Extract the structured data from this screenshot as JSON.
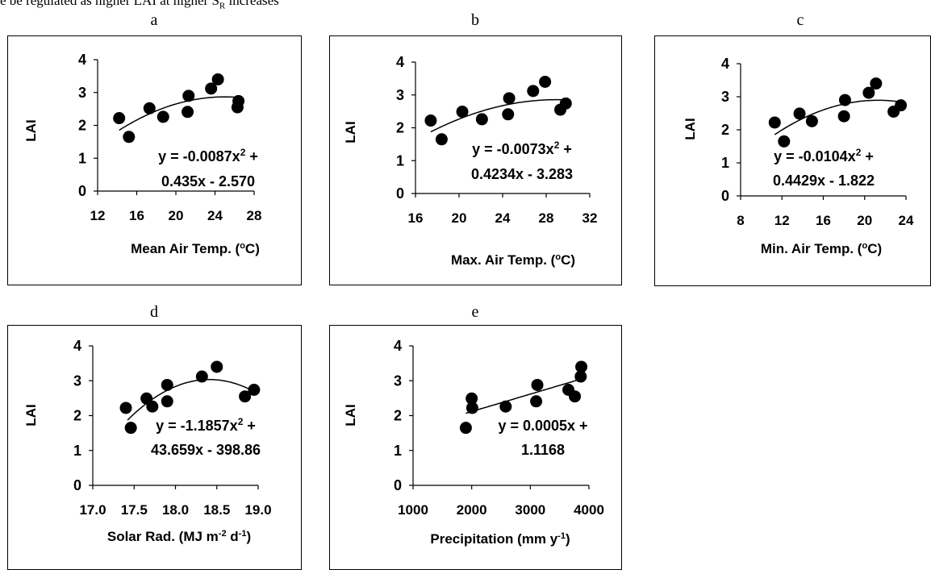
{
  "top_text": "e be regulated as higher LAI at higher S",
  "top_text_sub": "R",
  "top_text_end": " increases",
  "chart_data": [
    {
      "id": "a",
      "letter": "a",
      "type": "scatter",
      "ylabel": "LAI",
      "xlabel": "Mean Air Temp. (oC)",
      "xlabel_parts": [
        "Mean Air Temp. (",
        "o",
        "C)"
      ],
      "xticks": [
        12,
        16,
        20,
        24,
        28
      ],
      "tick_decimals": 0,
      "xlim": [
        12,
        28
      ],
      "ylim": [
        0,
        4
      ],
      "yticks": [
        0,
        1,
        2,
        3,
        4
      ],
      "x": [
        14.2,
        15.2,
        17.3,
        18.7,
        21.2,
        21.3,
        23.6,
        24.3,
        26.3,
        26.4
      ],
      "y": [
        2.22,
        1.65,
        2.52,
        2.26,
        2.41,
        2.9,
        3.12,
        3.4,
        2.55,
        2.74
      ],
      "fit": {
        "a": -0.0087,
        "b": 0.435,
        "c": -2.57,
        "x_range": [
          14.2,
          26.4
        ]
      },
      "equation_lines": [
        "y = -0.0087x2 +",
        "0.435x - 2.570"
      ]
    },
    {
      "id": "b",
      "letter": "b",
      "type": "scatter",
      "ylabel": "LAI",
      "xlabel": "Max. Air Temp. (oC)",
      "xlabel_parts": [
        "Max. Air Temp. (",
        "o",
        "C)"
      ],
      "xticks": [
        16,
        20,
        24,
        28,
        32
      ],
      "tick_decimals": 0,
      "xlim": [
        16,
        32
      ],
      "ylim": [
        0,
        4
      ],
      "yticks": [
        0,
        1,
        2,
        3,
        4
      ],
      "x": [
        17.4,
        18.4,
        20.3,
        22.1,
        24.5,
        24.6,
        26.8,
        27.9,
        29.3,
        29.8
      ],
      "y": [
        2.22,
        1.65,
        2.49,
        2.26,
        2.41,
        2.9,
        3.12,
        3.4,
        2.55,
        2.74
      ],
      "fit": {
        "a": -0.0073,
        "b": 0.4234,
        "c": -3.283,
        "x_range": [
          17.4,
          29.8
        ]
      },
      "equation_lines": [
        "y = -0.0073x2 +",
        "0.4234x - 3.283"
      ]
    },
    {
      "id": "c",
      "letter": "c",
      "type": "scatter",
      "ylabel": "LAI",
      "xlabel": "Min. Air Temp. (oC)",
      "xlabel_parts": [
        "Min. Air Temp. (",
        "o",
        "C)"
      ],
      "xticks": [
        8,
        12,
        16,
        20,
        24
      ],
      "tick_decimals": 0,
      "xlim": [
        8,
        24
      ],
      "ylim": [
        0,
        4
      ],
      "yticks": [
        0,
        1,
        2,
        3,
        4
      ],
      "x": [
        11.3,
        12.2,
        13.7,
        14.9,
        18.0,
        18.1,
        20.4,
        21.1,
        22.8,
        23.5
      ],
      "y": [
        2.22,
        1.65,
        2.49,
        2.26,
        2.41,
        2.9,
        3.12,
        3.4,
        2.55,
        2.74
      ],
      "fit": {
        "a": -0.0104,
        "b": 0.4429,
        "c": -1.822,
        "x_range": [
          11.3,
          23.5
        ]
      },
      "equation_lines": [
        "y = -0.0104x2 +",
        "0.4429x - 1.822"
      ]
    },
    {
      "id": "d",
      "letter": "d",
      "type": "scatter",
      "ylabel": "LAI",
      "xlabel": "Solar Rad. (MJ m-2 d-1)",
      "xlabel_parts": [
        "Solar Rad. (MJ m",
        "-2",
        " d",
        "-1",
        ")"
      ],
      "xticks": [
        17.0,
        17.5,
        18.0,
        18.5,
        19.0
      ],
      "tick_decimals": 1,
      "xlim": [
        17.0,
        19.0
      ],
      "ylim": [
        0,
        4
      ],
      "yticks": [
        0,
        1,
        2,
        3,
        4
      ],
      "x": [
        17.4,
        17.46,
        17.65,
        17.72,
        17.9,
        17.9,
        18.32,
        18.5,
        18.84,
        18.95
      ],
      "y": [
        2.22,
        1.65,
        2.49,
        2.26,
        2.41,
        2.88,
        3.12,
        3.4,
        2.55,
        2.74
      ],
      "fit": {
        "a": -1.1857,
        "b": 43.659,
        "c": -398.86,
        "x_range": [
          17.42,
          18.93
        ]
      },
      "equation_lines": [
        "y = -1.1857x2 +",
        "43.659x - 398.86"
      ]
    },
    {
      "id": "e",
      "letter": "e",
      "type": "scatter",
      "ylabel": "LAI",
      "xlabel": "Precipitation (mm y-1)",
      "xlabel_parts": [
        "Precipitation (mm y",
        "-1",
        ")"
      ],
      "xticks": [
        1000,
        2000,
        3000,
        4000
      ],
      "tick_decimals": 0,
      "xlim": [
        1000,
        4000
      ],
      "ylim": [
        0,
        4
      ],
      "yticks": [
        0,
        1,
        2,
        3,
        4
      ],
      "x": [
        1900,
        2000,
        2010,
        2580,
        3100,
        3120,
        3650,
        3760,
        3860,
        3870
      ],
      "y": [
        1.65,
        2.49,
        2.22,
        2.26,
        2.41,
        2.88,
        2.74,
        2.55,
        3.12,
        3.4
      ],
      "fit": {
        "a": 0,
        "b": 0.0005,
        "c": 1.1168,
        "x_range": [
          1900,
          3870
        ]
      },
      "equation_lines": [
        "y = 0.0005x +",
        "1.1168"
      ]
    }
  ]
}
